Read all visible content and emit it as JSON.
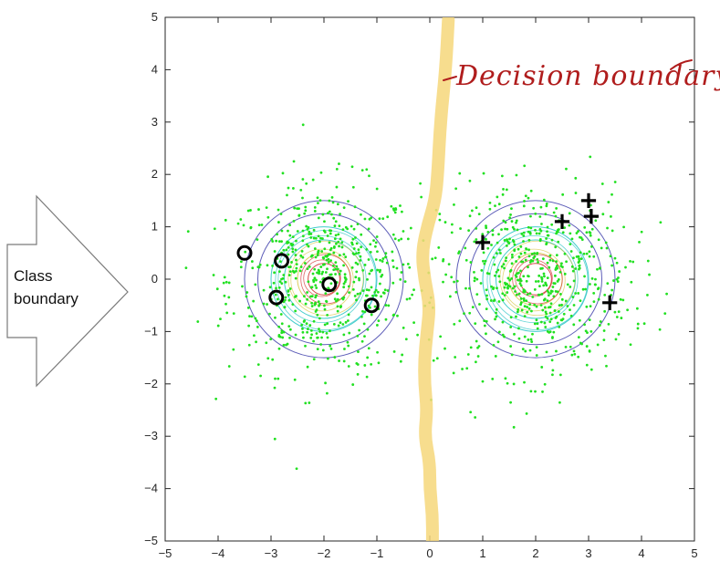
{
  "colors": {
    "sample_points": "#21e021",
    "boundary_highlight": "#f6d77a",
    "decision_text": "#b01d1d",
    "markers": "#000000",
    "contour_outer": "#4b4bb0",
    "contour_mid": "#2ec6c6",
    "contour_inner": "#d8c84a",
    "contour_core": "#d23232"
  },
  "arrow": {
    "line1": "Class",
    "line2": "boundary"
  },
  "decision_label": "Decision boundary",
  "chart_data": {
    "type": "scatter",
    "xlim": [
      -5,
      5
    ],
    "ylim": [
      -5,
      5
    ],
    "x_ticks": [
      -5,
      -4,
      -3,
      -2,
      -1,
      0,
      1,
      2,
      3,
      4,
      5
    ],
    "y_ticks": [
      -5,
      -4,
      -3,
      -2,
      -1,
      0,
      1,
      2,
      3,
      4,
      5
    ],
    "grid": false,
    "clusters": [
      {
        "center": [
          -2,
          0
        ],
        "spread": 0.9
      },
      {
        "center": [
          2,
          0
        ],
        "spread": 0.9
      }
    ],
    "contour_levels": [
      0.3,
      0.5,
      0.75,
      1.0,
      1.25,
      1.5
    ],
    "circles_marked": [
      {
        "x": -3.5,
        "y": 0.5
      },
      {
        "x": -2.8,
        "y": 0.35
      },
      {
        "x": -2.9,
        "y": -0.35
      },
      {
        "x": -1.9,
        "y": -0.1
      },
      {
        "x": -1.1,
        "y": -0.5
      }
    ],
    "plus_marked": [
      {
        "x": 1.0,
        "y": 0.7
      },
      {
        "x": 2.5,
        "y": 1.1
      },
      {
        "x": 3.0,
        "y": 1.5
      },
      {
        "x": 3.05,
        "y": 1.2
      },
      {
        "x": 3.4,
        "y": -0.45
      }
    ],
    "decision_boundary": [
      {
        "x": 0.35,
        "y": 4.95
      },
      {
        "x": 0.3,
        "y": 4.0
      },
      {
        "x": 0.2,
        "y": 3.0
      },
      {
        "x": 0.15,
        "y": 2.0
      },
      {
        "x": 0.1,
        "y": 1.5
      },
      {
        "x": -0.05,
        "y": 1.0
      },
      {
        "x": -0.15,
        "y": 0.5
      },
      {
        "x": -0.1,
        "y": 0.0
      },
      {
        "x": 0.0,
        "y": -0.5
      },
      {
        "x": -0.05,
        "y": -1.0
      },
      {
        "x": -0.1,
        "y": -1.5
      },
      {
        "x": -0.1,
        "y": -2.0
      },
      {
        "x": -0.05,
        "y": -2.5
      },
      {
        "x": -0.1,
        "y": -3.0
      },
      {
        "x": 0.0,
        "y": -3.5
      },
      {
        "x": 0.0,
        "y": -4.0
      },
      {
        "x": 0.05,
        "y": -4.5
      },
      {
        "x": 0.05,
        "y": -5.0
      }
    ]
  }
}
